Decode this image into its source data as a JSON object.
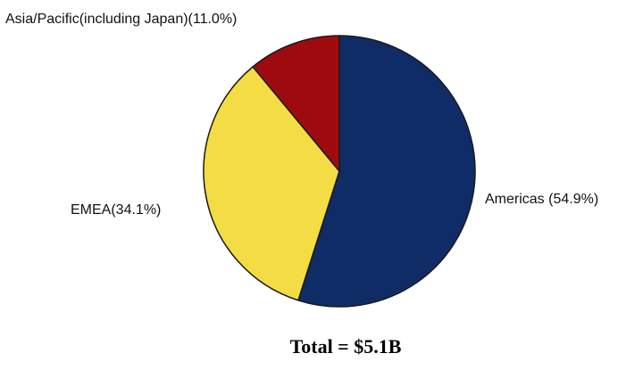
{
  "chart_data": {
    "type": "pie",
    "slices": [
      {
        "label": "Americas (54.9%)",
        "value": 54.9,
        "color": "#0f2c66"
      },
      {
        "label": "EMEA(34.1%)",
        "value": 34.1,
        "color": "#f4dc44"
      },
      {
        "label": "Asia/Pacific(including Japan)(11.0%)",
        "value": 11.0,
        "color": "#9e0b0f"
      }
    ],
    "start": "12 o'clock",
    "direction": "clockwise",
    "caption": "Total = $5.1B",
    "legend": "none"
  }
}
